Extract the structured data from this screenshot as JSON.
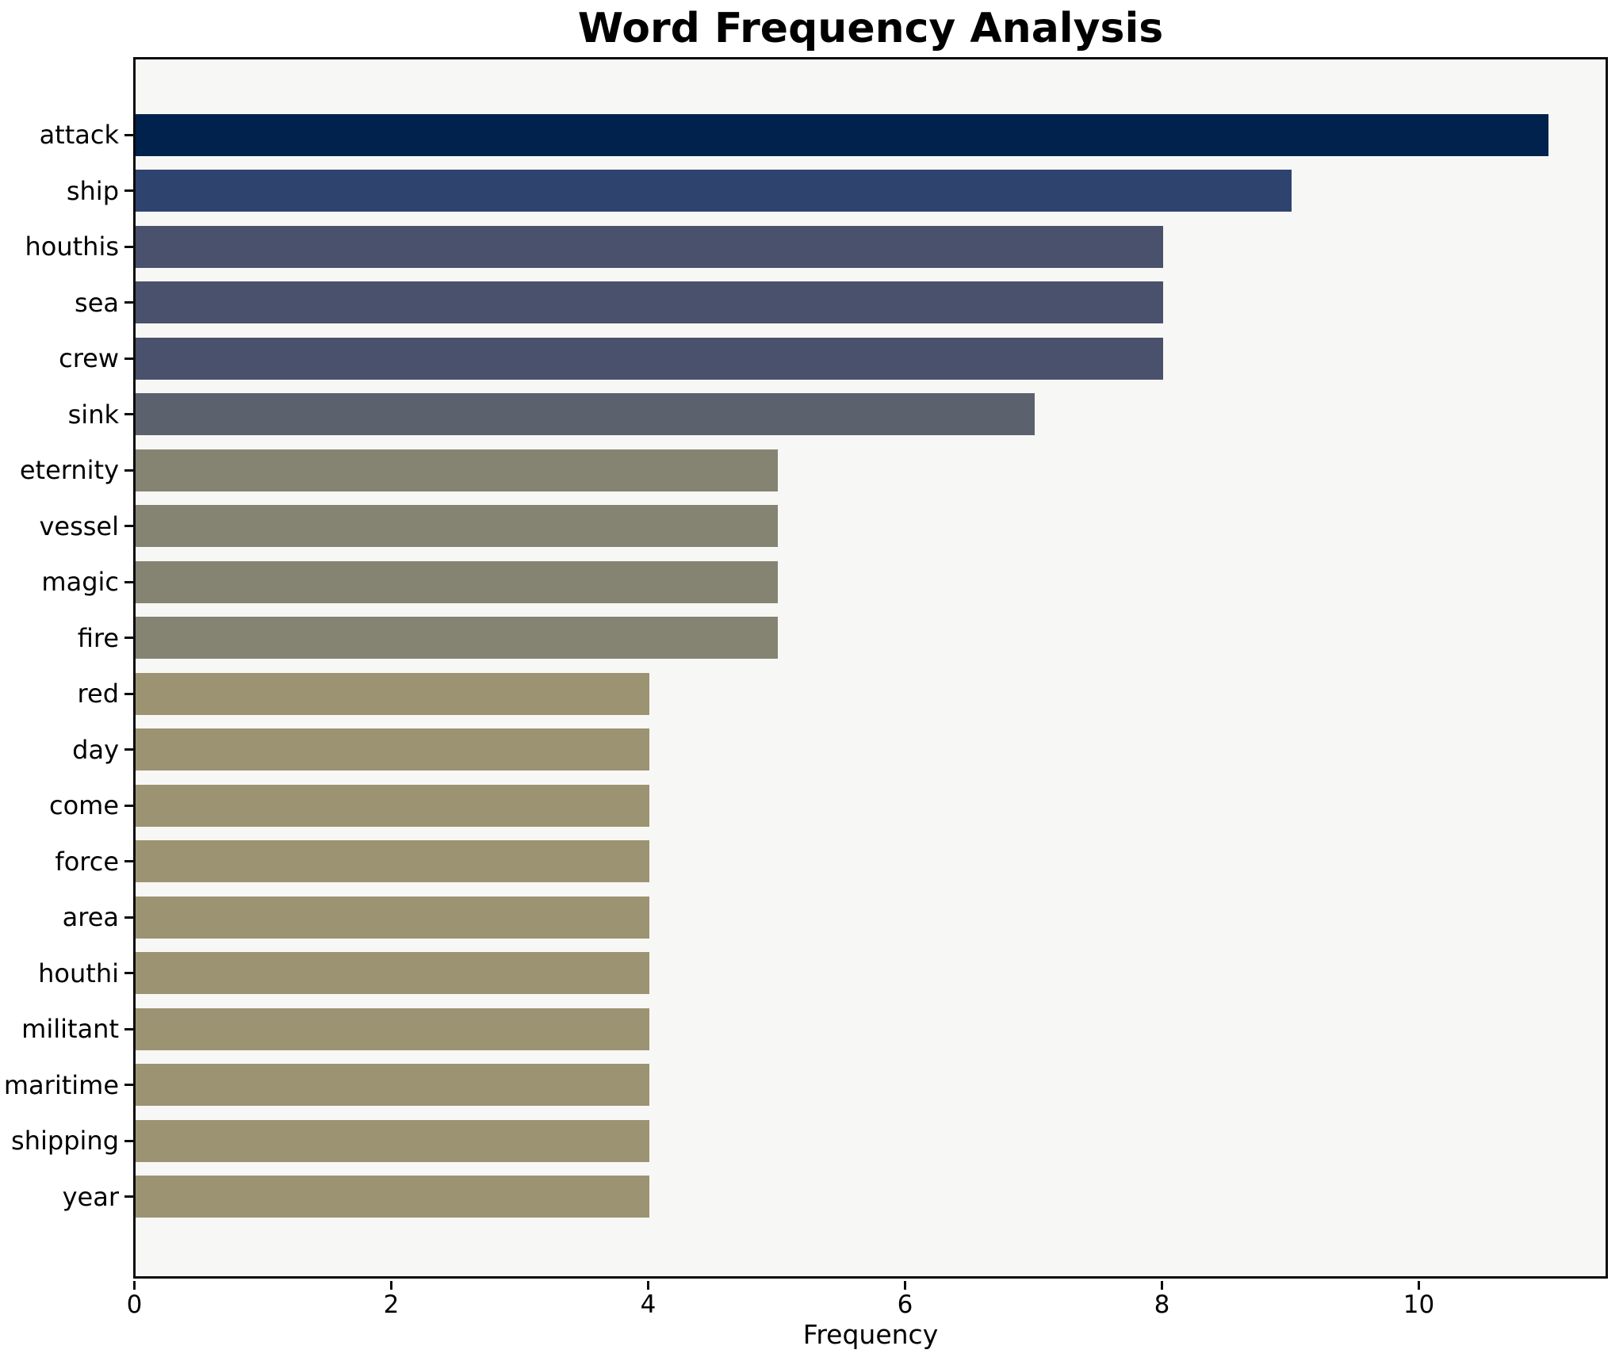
{
  "chart_data": {
    "type": "bar",
    "orientation": "horizontal",
    "title": "Word Frequency Analysis",
    "xlabel": "Frequency",
    "ylabel": "",
    "categories": [
      "attack",
      "ship",
      "houthis",
      "sea",
      "crew",
      "sink",
      "eternity",
      "vessel",
      "magic",
      "fire",
      "red",
      "day",
      "come",
      "force",
      "area",
      "houthi",
      "militant",
      "maritime",
      "shipping",
      "year"
    ],
    "values": [
      11,
      9,
      8,
      8,
      8,
      7,
      5,
      5,
      5,
      5,
      4,
      4,
      4,
      4,
      4,
      4,
      4,
      4,
      4,
      4
    ],
    "bar_colors": [
      "#00224d",
      "#2f436f",
      "#4a516c",
      "#4a516c",
      "#4a516c",
      "#5c616e",
      "#858372",
      "#858372",
      "#858372",
      "#858372",
      "#9c9372",
      "#9c9372",
      "#9c9372",
      "#9c9372",
      "#9c9372",
      "#9c9372",
      "#9c9372",
      "#9c9372",
      "#9c9372",
      "#9c9372"
    ],
    "xticks": [
      0,
      2,
      4,
      6,
      8,
      10
    ],
    "xlim": [
      0,
      11.45
    ],
    "grid": false,
    "legend": false,
    "plot_background": "#f7f7f5",
    "figure_background": "#ffffff",
    "spine_color": "#0a0a0a",
    "text_color": "#000000"
  }
}
